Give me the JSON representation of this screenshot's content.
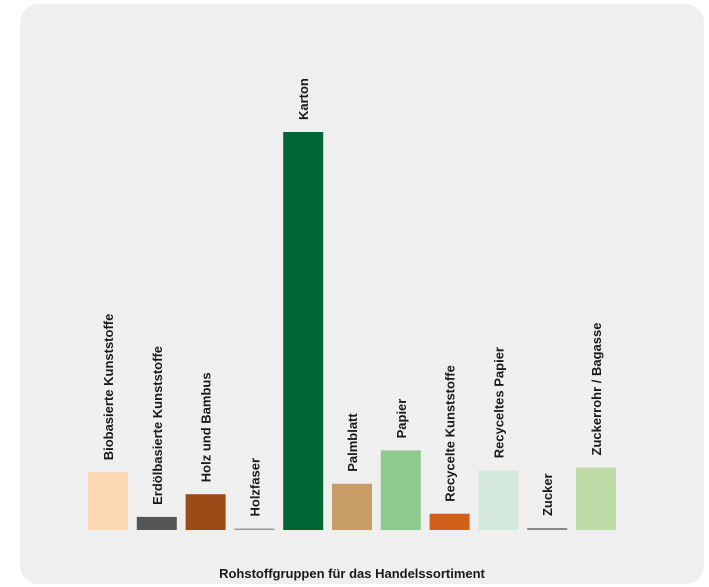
{
  "chart_data": {
    "type": "bar",
    "xlabel": "Rohstoffgruppen für das Handelssortiment",
    "ylabel": "",
    "ylim": [
      0,
      100
    ],
    "grid": false,
    "legend": "none",
    "categories": [
      "Biobasierte Kunststoffe",
      "Erdölbasierte Kunststoffe",
      "Holz und Bambus",
      "Holzfaser",
      "Karton",
      "Palmblatt",
      "Papier",
      "Recycelte Kunststoffe",
      "Recyceltes Papier",
      "Zucker",
      "Zuckerrohr / Bagasse"
    ],
    "values": [
      14.5,
      3.3,
      9.0,
      0.3,
      100,
      11.6,
      20.0,
      4.1,
      15.0,
      0.5,
      15.7
    ],
    "colors": [
      "#fcd9b2",
      "#555555",
      "#9c4a18",
      "#9a9a9a",
      "#006633",
      "#c89d68",
      "#8ec98e",
      "#d2601a",
      "#d3e8da",
      "#8a8a8a",
      "#bedba8"
    ]
  }
}
